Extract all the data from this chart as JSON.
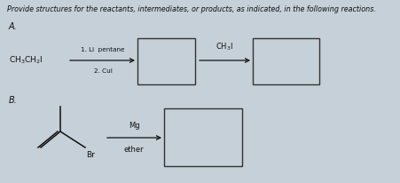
{
  "title": "Provide structures for the reactants, intermediates, or products, as indicated, in the following reactions.",
  "background_color": "#c5d0d8",
  "title_fontsize": 5.8,
  "label_A": "A.",
  "label_B": "B.",
  "box_edge_color": "#333333",
  "box_face_color": "#c5d0d8",
  "arrow_color": "#111111",
  "text_color": "#111111",
  "reactant_A": "CH₃CH₂I",
  "arrow1_top": "1. Li  pentane",
  "arrow1_bot": "2. CuI",
  "arrow2_label": "CH₃I",
  "arrow_label_mg": "Mg",
  "arrow_label_ether": "ether",
  "br_label": "Br"
}
